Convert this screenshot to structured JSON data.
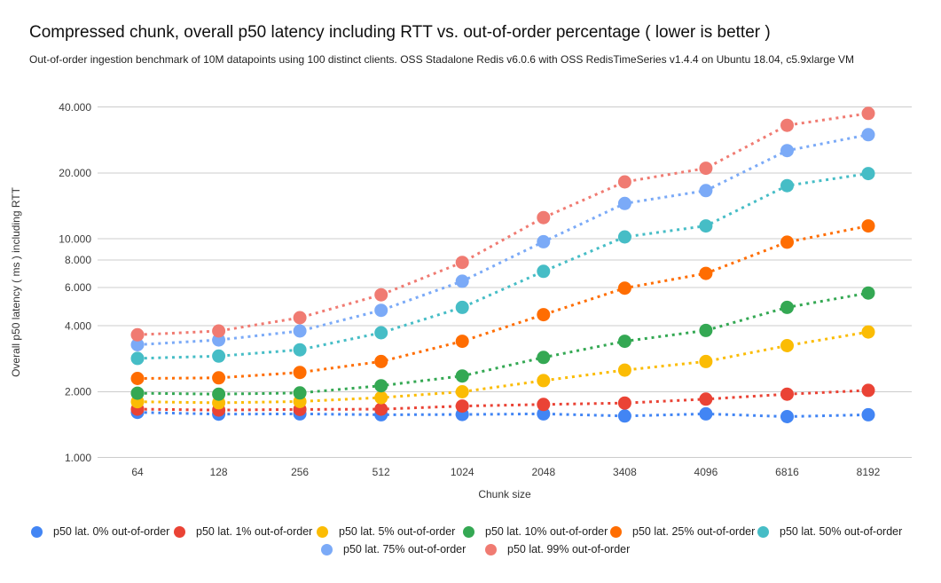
{
  "header": {
    "title": "Compressed chunk, overall p50 latency including RTT vs. out-of-order percentage ( lower is better )",
    "subtitle": "Out-of-order ingestion benchmark of 10M datapoints using 100 distinct clients. OSS Stadalone Redis v6.0.6 with OSS RedisTimeSeries v1.4.4 on Ubuntu 18.04, c5.9xlarge VM"
  },
  "chart_data": {
    "type": "line",
    "line_style": "dotted",
    "grid": true,
    "legend_position": "bottom",
    "x_axis": {
      "title": "Chunk size",
      "categories": [
        "64",
        "128",
        "256",
        "512",
        "1024",
        "2048",
        "3408",
        "4096",
        "6816",
        "8192"
      ]
    },
    "y_axis": {
      "title": "Overall p50 latency ( ms ) including RTT",
      "scale": "log",
      "range": [
        1000,
        45000
      ],
      "ticks": [
        {
          "value": 1000,
          "label": "1.000"
        },
        {
          "value": 2000,
          "label": "2.000"
        },
        {
          "value": 4000,
          "label": "4.000"
        },
        {
          "value": 6000,
          "label": "6.000"
        },
        {
          "value": 8000,
          "label": "8.000"
        },
        {
          "value": 10000,
          "label": "10.000"
        },
        {
          "value": 20000,
          "label": "20.000"
        },
        {
          "value": 40000,
          "label": "40.000"
        }
      ]
    },
    "series": [
      {
        "label": "p50 lat. 0% out-of-order",
        "color": "#4285F4",
        "values": [
          1610,
          1580,
          1585,
          1570,
          1575,
          1585,
          1550,
          1585,
          1540,
          1570
        ]
      },
      {
        "label": "p50 lat. 1% out-of-order",
        "color": "#EA4335",
        "values": [
          1665,
          1650,
          1660,
          1665,
          1720,
          1750,
          1775,
          1850,
          1950,
          2030
        ]
      },
      {
        "label": "p50 lat. 5% out-of-order",
        "color": "#FBBC04",
        "values": [
          1800,
          1780,
          1805,
          1880,
          2000,
          2250,
          2510,
          2750,
          3250,
          3750
        ]
      },
      {
        "label": "p50 lat. 10% out-of-order",
        "color": "#34A853",
        "values": [
          1970,
          1950,
          1975,
          2130,
          2360,
          2870,
          3400,
          3810,
          4860,
          5650
        ]
      },
      {
        "label": "p50 lat. 25% out-of-order",
        "color": "#FF6D01",
        "values": [
          2300,
          2315,
          2450,
          2750,
          3400,
          4500,
          5950,
          6950,
          9650,
          11450
        ]
      },
      {
        "label": "p50 lat. 50% out-of-order",
        "color": "#46BDC6",
        "values": [
          2840,
          2910,
          3110,
          3720,
          4860,
          7100,
          10200,
          11450,
          17500,
          19870
        ]
      },
      {
        "label": "p50 lat. 75% out-of-order",
        "color": "#7BAAF7",
        "values": [
          3280,
          3450,
          3790,
          4710,
          6400,
          9700,
          14500,
          16600,
          25300,
          29900
        ]
      },
      {
        "label": "p50 lat. 99% out-of-order",
        "color": "#F07B72",
        "values": [
          3640,
          3790,
          4360,
          5550,
          7800,
          12500,
          18200,
          21000,
          33000,
          37400
        ]
      }
    ]
  },
  "colors": {
    "grid": "#cccccc",
    "tick_text": "#3c3c3c",
    "axis_title_text": "#333333",
    "background": "#ffffff"
  }
}
